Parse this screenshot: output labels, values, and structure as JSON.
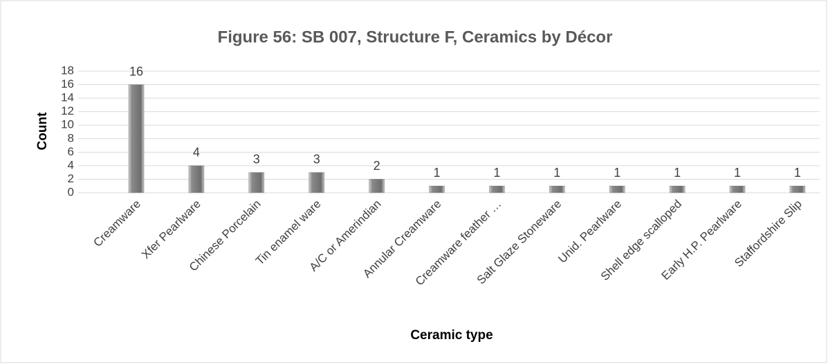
{
  "chart_data": {
    "type": "bar",
    "title": "Figure 56:  SB 007, Structure F, Ceramics by Décor",
    "x_label": "Ceramic type",
    "y_label": "Count",
    "categories": [
      "Creamware",
      "Xfer Pearlware",
      "Chinese Porcelain",
      "Tin enamel ware",
      "A/C or Amerindian",
      "Annular Creamware",
      "Creamware feather …",
      "Salt Glaze Stoneware",
      "Unid. Pearlware",
      "Shell edge scalloped",
      "Early H.P. Pearlware",
      "Staffordshire Slip"
    ],
    "values": [
      16,
      4,
      3,
      3,
      2,
      1,
      1,
      1,
      1,
      1,
      1,
      1
    ],
    "color": "#808080",
    "ylim": [
      0,
      18
    ],
    "yticks": [
      0,
      2,
      4,
      6,
      8,
      10,
      12,
      14,
      16,
      18
    ],
    "grid": true
  }
}
